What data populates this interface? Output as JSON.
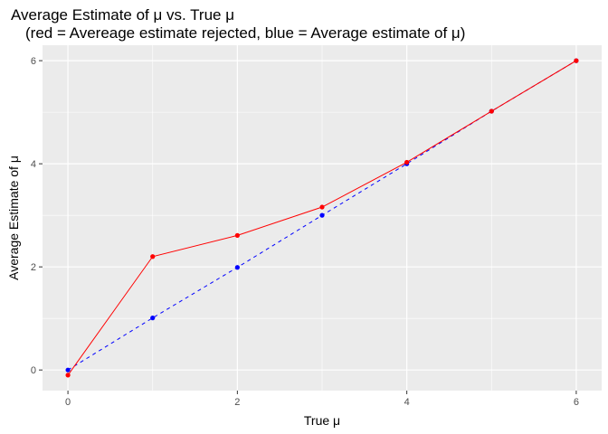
{
  "chart_data": {
    "type": "line",
    "title": "Average Estimate of μ vs. True μ",
    "subtitle": "(red = Avereage estimate rejected, blue = Average estimate of μ)",
    "xlabel": "True μ",
    "ylabel": "Average Estimate of μ",
    "xlim": [
      -0.3,
      6.3
    ],
    "ylim": [
      -0.4,
      6.3
    ],
    "x_ticks": [
      0,
      2,
      4,
      6
    ],
    "y_ticks": [
      0,
      2,
      4,
      6
    ],
    "grid": true,
    "legend": "none",
    "colors": {
      "panel_background": "#ebebeb",
      "grid_major": "#ffffff",
      "red_series": "#ff0000",
      "blue_series": "#0000ff",
      "tick_mark": "#333333"
    },
    "series": [
      {
        "color": "#0000ff",
        "line_style": "dashed",
        "x": [
          0,
          1,
          2,
          3,
          4,
          5,
          6
        ],
        "y": [
          0.0,
          1.01,
          1.99,
          3.0,
          4.0,
          5.02,
          6.0
        ]
      },
      {
        "color": "#ff0000",
        "line_style": "solid",
        "x": [
          0,
          1,
          2,
          3,
          4,
          5,
          6
        ],
        "y": [
          -0.1,
          2.2,
          2.61,
          3.16,
          4.03,
          5.02,
          6.0
        ]
      }
    ]
  }
}
